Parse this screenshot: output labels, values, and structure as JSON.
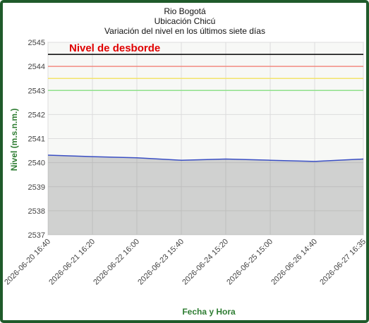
{
  "chart_data": {
    "type": "line",
    "title": "Rio Bogotá",
    "subtitle": "Ubicación Chicú",
    "subtitle2": "Variación del nivel en los últimos siete días",
    "y_label": "Nivel (m.s.n.m.)",
    "x_label": "Fecha y Hora",
    "annotation": "Nivel de desborde",
    "x": [
      "2026-06-20 16:40",
      "2026-06-21 16:20",
      "2026-06-22 16:00",
      "2026-06-23 15:40",
      "2026-06-24 15:20",
      "2026-06-25 15:00",
      "2026-06-26 14:40",
      "2026-06-27 16:35"
    ],
    "series": [
      {
        "color": "#3a4fc4",
        "values": [
          2540.31,
          2540.25,
          2540.2,
          2540.1,
          2540.15,
          2540.1,
          2540.05,
          2540.15
        ]
      }
    ],
    "thresholds": [
      {
        "value": 2544.5,
        "color": "#000000"
      },
      {
        "value": 2544,
        "color": "#f28b82"
      },
      {
        "value": 2543.5,
        "color": "#f2e36b"
      },
      {
        "value": 2543,
        "color": "#8fe08a"
      }
    ],
    "xlim": [
      "2026-06-20 16:40",
      "2026-06-27 16:35"
    ],
    "xticks": [
      "2026-06-20 16:40",
      "2026-06-21 16:20",
      "2026-06-22 16:00",
      "2026-06-23 15:40",
      "2026-06-24 15:20",
      "2026-06-25 15:00",
      "2026-06-26 14:40",
      "2026-06-27 16:35"
    ],
    "ylim": [
      2537,
      2545
    ],
    "yticks": [
      2537,
      2538,
      2539,
      2540,
      2541,
      2542,
      2543,
      2544,
      2545
    ],
    "grid": true
  }
}
